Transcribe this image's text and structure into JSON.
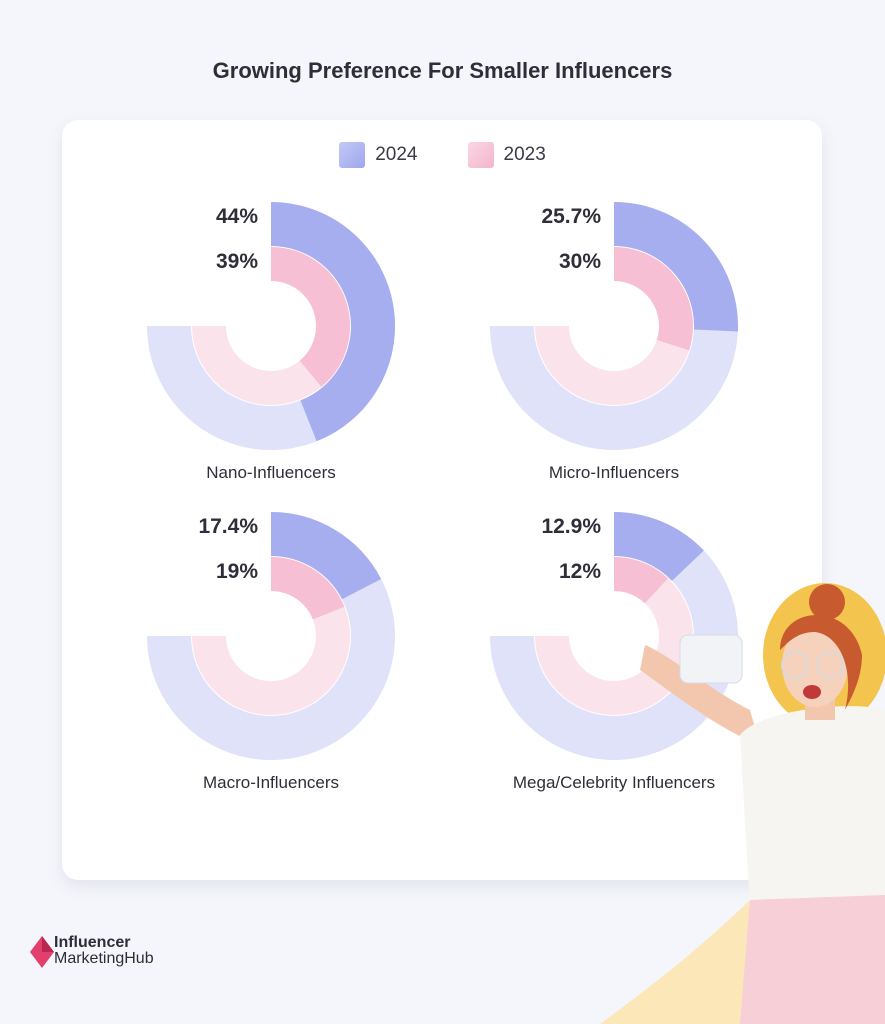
{
  "title": "Growing Preference For Smaller Influencers",
  "legend": [
    {
      "label": "2024",
      "color": "#a7aef0"
    },
    {
      "label": "2023",
      "color": "#f6bfd4"
    }
  ],
  "colors": {
    "outer": "#a7aef0",
    "outer_track": "#dfe2f8",
    "inner": "#f6bfd4",
    "inner_track": "#fbe3ec"
  },
  "chart_data": [
    {
      "type": "pie",
      "category": "Nano-Influencers",
      "series": [
        {
          "name": "2024",
          "value": 44,
          "label": "44%"
        },
        {
          "name": "2023",
          "value": 39,
          "label": "39%"
        }
      ]
    },
    {
      "type": "pie",
      "category": "Micro-Influencers",
      "series": [
        {
          "name": "2024",
          "value": 25.7,
          "label": "25.7%"
        },
        {
          "name": "2023",
          "value": 30,
          "label": "30%"
        }
      ]
    },
    {
      "type": "pie",
      "category": "Macro-Influencers",
      "series": [
        {
          "name": "2024",
          "value": 17.4,
          "label": "17.4%"
        },
        {
          "name": "2023",
          "value": 19,
          "label": "19%"
        }
      ]
    },
    {
      "type": "pie",
      "category": "Mega/Celebrity Influencers",
      "series": [
        {
          "name": "2024",
          "value": 12.9,
          "label": "12.9%"
        },
        {
          "name": "2023",
          "value": 12,
          "label": "12%"
        }
      ]
    }
  ],
  "brand": {
    "line1": "Influencer",
    "line2": "MarketingHub",
    "logo_icon": "diamond-logo-icon"
  },
  "illustration": "woman-taking-selfie-image"
}
